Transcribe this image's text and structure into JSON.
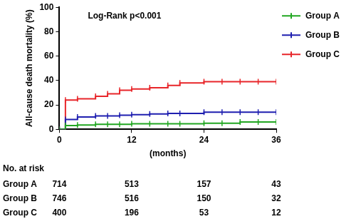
{
  "chart_data": {
    "type": "line",
    "annotation": "Log-Rank p<0.001",
    "x_label": "(months)",
    "y_label": "All-cause death mortality (%)",
    "x": [
      0,
      1,
      3,
      6,
      8,
      10,
      12,
      15,
      18,
      20,
      24,
      27,
      30,
      33,
      36
    ],
    "series": [
      {
        "name": "Group A",
        "color": "#22a722",
        "values": [
          0,
          3,
          3.5,
          4,
          4,
          4,
          4.5,
          4.5,
          4.5,
          4.5,
          5,
          5,
          6,
          6,
          6
        ]
      },
      {
        "name": "Group B",
        "color": "#1f1fb0",
        "values": [
          0,
          8,
          10,
          11,
          11,
          11.5,
          12,
          12.5,
          13,
          13,
          14,
          14,
          14,
          14,
          14
        ]
      },
      {
        "name": "Group C",
        "color": "#e8262a",
        "values": [
          0,
          24,
          25,
          27,
          29,
          32,
          33,
          34,
          36,
          38,
          39,
          39,
          39,
          39,
          39
        ]
      }
    ],
    "xlim": [
      0,
      36
    ],
    "xticks": [
      0,
      12,
      24,
      36
    ],
    "ylim": [
      0,
      100
    ],
    "yticks": [
      0,
      20,
      40,
      60,
      80,
      100
    ],
    "grid": false,
    "legend": "right",
    "line_style": "step",
    "marker": "line",
    "at_risk": {
      "title": "No. at risk",
      "times": [
        0,
        12,
        24,
        36
      ],
      "rows": [
        {
          "name": "Group A",
          "values": [
            714,
            513,
            157,
            43
          ]
        },
        {
          "name": "Group B",
          "values": [
            746,
            516,
            150,
            32
          ]
        },
        {
          "name": "Group C",
          "values": [
            400,
            196,
            53,
            12
          ]
        }
      ]
    }
  }
}
